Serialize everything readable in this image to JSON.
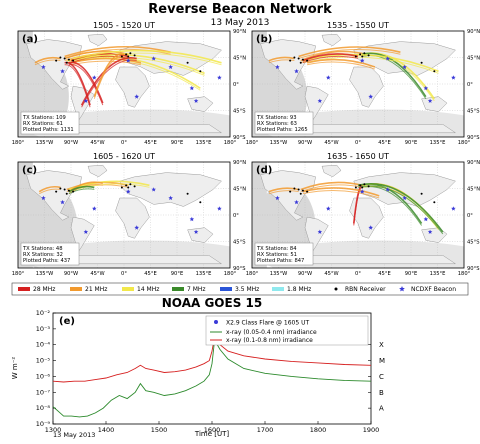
{
  "title": "Reverse Beacon Network",
  "date": "13 May 2013",
  "panels": [
    {
      "label": "(a)",
      "time": "1505 - 1520 UT",
      "tx": "TX Stations: 109",
      "rx": "RX Stations: 61",
      "paths": "Plotted Paths: 1131"
    },
    {
      "label": "(b)",
      "time": "1535 - 1550 UT",
      "tx": "TX Stations: 93",
      "rx": "RX Stations: 63",
      "paths": "Plotted Paths: 1265"
    },
    {
      "label": "(c)",
      "time": "1605 - 1620 UT",
      "tx": "TX Stations: 48",
      "rx": "RX Stations: 32",
      "paths": "Plotted Paths: 437"
    },
    {
      "label": "(d)",
      "time": "1635 - 1650 UT",
      "tx": "TX Stations: 84",
      "rx": "RX Stations: 51",
      "paths": "Plotted Paths: 847"
    }
  ],
  "map_axes": {
    "lon_ticks": [
      "180°",
      "135°W",
      "90°W",
      "45°W",
      "0°",
      "45°E",
      "90°E",
      "135°E",
      "180°"
    ],
    "lat_ticks": [
      "90°N",
      "45°N",
      "0°",
      "45°S",
      "90°S"
    ]
  },
  "legend": [
    {
      "label": "28 MHz",
      "color": "#d62020",
      "kind": "line"
    },
    {
      "label": "21 MHz",
      "color": "#f29a2e",
      "kind": "line"
    },
    {
      "label": "14 MHz",
      "color": "#f2e84a",
      "kind": "line"
    },
    {
      "label": "7 MHz",
      "color": "#3a8a2a",
      "kind": "line"
    },
    {
      "label": "3.5 MHz",
      "color": "#2a55d8",
      "kind": "line"
    },
    {
      "label": "1.8 MHz",
      "color": "#8fe9ee",
      "kind": "line"
    },
    {
      "label": "RBN Receiver",
      "color": "#000000",
      "kind": "dot"
    },
    {
      "label": "NCDXF Beacon",
      "color": "#3a3ad8",
      "kind": "star"
    }
  ],
  "goes": {
    "title": "NOAA GOES 15",
    "label": "(e)",
    "ylabel": "W m⁻²",
    "xlabel": "Time [UT]",
    "date": "13 May 2013",
    "legend": {
      "flare": "X2.9 Class Flare @ 1605 UT",
      "short": "x-ray (0.05-0.4 nm) irradiance",
      "long": "x-ray (0.1-0.8 nm) irradiance"
    },
    "x_ticks": [
      "1300",
      "1400",
      "1500",
      "1600",
      "1700",
      "1800",
      "1900"
    ],
    "y_ticks": [
      "10⁻²",
      "10⁻³",
      "10⁻⁴",
      "10⁻⁵",
      "10⁻⁶",
      "10⁻⁷",
      "10⁻⁸",
      "10⁻⁹"
    ],
    "classes": [
      "X",
      "M",
      "C",
      "B",
      "A"
    ],
    "colors": {
      "long": "#d62020",
      "short": "#2c8a2c",
      "flare": "#3a3ad8"
    }
  },
  "chart_data": {
    "type": "line",
    "title": "NOAA GOES 15",
    "xlabel": "Time [UT]",
    "ylabel": "W m⁻²",
    "xlim": [
      1300,
      1900
    ],
    "ylim_log10": [
      -9,
      -2
    ],
    "y_scale": "log",
    "series": [
      {
        "name": "x-ray (0.1-0.8 nm) irradiance",
        "x": [
          1300,
          1320,
          1340,
          1360,
          1380,
          1400,
          1420,
          1440,
          1455,
          1465,
          1475,
          1490,
          1510,
          1530,
          1550,
          1570,
          1585,
          1595,
          1600,
          1605,
          1615,
          1630,
          1660,
          1700,
          1750,
          1800,
          1850,
          1900
        ],
        "log10": [
          -6.3,
          -6.35,
          -6.3,
          -6.3,
          -6.2,
          -6.1,
          -5.9,
          -5.75,
          -5.5,
          -5.3,
          -5.5,
          -5.6,
          -5.75,
          -5.7,
          -5.6,
          -5.4,
          -5.2,
          -5.0,
          -4.4,
          -3.5,
          -4.0,
          -4.4,
          -4.7,
          -4.9,
          -5.05,
          -5.15,
          -5.25,
          -5.3
        ]
      },
      {
        "name": "x-ray (0.05-0.4 nm) irradiance",
        "x": [
          1300,
          1310,
          1320,
          1335,
          1350,
          1365,
          1380,
          1395,
          1410,
          1425,
          1440,
          1455,
          1465,
          1475,
          1490,
          1510,
          1530,
          1550,
          1570,
          1585,
          1595,
          1600,
          1605,
          1615,
          1630,
          1660,
          1700,
          1750,
          1800,
          1850,
          1900
        ],
        "log10": [
          -7.9,
          -8.2,
          -8.5,
          -8.5,
          -8.55,
          -8.5,
          -8.3,
          -8.0,
          -7.5,
          -7.2,
          -7.4,
          -7.0,
          -6.45,
          -6.9,
          -7.0,
          -7.2,
          -7.1,
          -6.9,
          -6.6,
          -6.3,
          -5.9,
          -5.2,
          -3.7,
          -4.3,
          -4.9,
          -5.5,
          -5.8,
          -6.0,
          -6.15,
          -6.25,
          -6.3
        ]
      }
    ],
    "annotations": [
      {
        "label": "X2.9 Class Flare @ 1605 UT",
        "x": 1605,
        "log10": -3.55
      }
    ]
  }
}
